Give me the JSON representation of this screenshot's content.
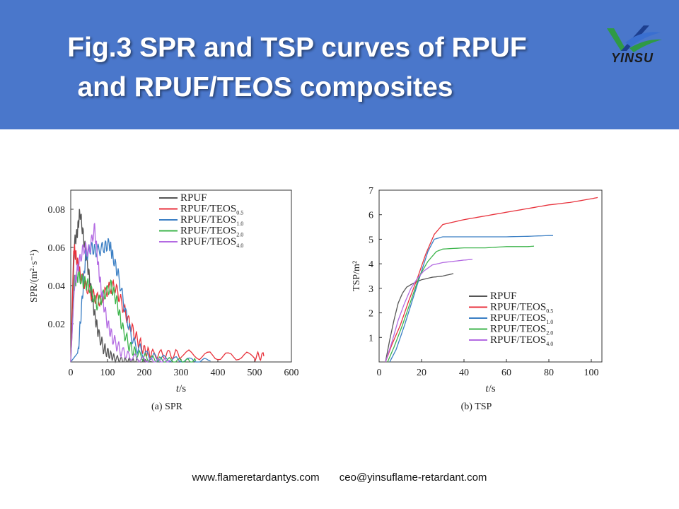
{
  "header": {
    "title_line1": "Fig.3 SPR and TSP curves of RPUF",
    "title_line2": "and RPUF/TEOS composites",
    "logo_text": "YINSU"
  },
  "footer": {
    "website": "www.flameretardantys.com",
    "email": "ceo@yinsuflame-retardant.com"
  },
  "colors": {
    "header_bg": "#4a77cb",
    "RPUF": "#555555",
    "RPUF/TEOS0.5": "#e8323c",
    "RPUF/TEOS1.0": "#3b7fc4",
    "RPUF/TEOS2.0": "#3cb44b",
    "RPUF/TEOS4.0": "#b36ae2"
  },
  "chart_data": [
    {
      "type": "line",
      "caption": "(a) SPR",
      "xlabel_italic": "t",
      "xlabel_unit": "/s",
      "ylabel": "SPR/(m²·s⁻¹)",
      "xlim": [
        0,
        600
      ],
      "ylim": [
        0,
        0.09
      ],
      "xticks": [
        "0",
        "100",
        "200",
        "300",
        "400",
        "500",
        "600"
      ],
      "yticks": [
        "0.02",
        "0.04",
        "0.06",
        "0.08"
      ],
      "legend_position": "top-right",
      "series": [
        {
          "name": "RPUF",
          "subscript": "",
          "x": [
            0,
            10,
            18,
            25,
            35,
            45,
            55,
            65,
            75,
            90,
            105,
            120,
            140,
            160,
            180,
            220
          ],
          "y": [
            0.0,
            0.062,
            0.068,
            0.079,
            0.065,
            0.052,
            0.038,
            0.025,
            0.015,
            0.007,
            0.004,
            0.002,
            0.001,
            0.0005,
            0.0003,
            0.0003
          ]
        },
        {
          "name": "RPUF/TEOS",
          "subscript": "0.5",
          "x": [
            0,
            8,
            15,
            25,
            40,
            60,
            80,
            100,
            120,
            140,
            160,
            180,
            200,
            220,
            260,
            300,
            400,
            500,
            525
          ],
          "y": [
            0.0,
            0.06,
            0.055,
            0.046,
            0.04,
            0.035,
            0.032,
            0.038,
            0.04,
            0.03,
            0.02,
            0.012,
            0.006,
            0.004,
            0.004,
            0.004,
            0.003,
            0.003,
            0.003
          ]
        },
        {
          "name": "RPUF/TEOS",
          "subscript": "1.0",
          "x": [
            0,
            20,
            30,
            40,
            55,
            70,
            90,
            105,
            115,
            130,
            150,
            170,
            200,
            240,
            300,
            380
          ],
          "y": [
            0.0,
            0.005,
            0.03,
            0.055,
            0.06,
            0.058,
            0.06,
            0.062,
            0.055,
            0.045,
            0.025,
            0.01,
            0.004,
            0.002,
            0.001,
            0.0005
          ]
        },
        {
          "name": "RPUF/TEOS",
          "subscript": "2.0",
          "x": [
            0,
            10,
            20,
            35,
            50,
            70,
            90,
            110,
            125,
            140,
            160,
            180,
            210,
            250,
            300,
            340
          ],
          "y": [
            0.0,
            0.042,
            0.045,
            0.042,
            0.04,
            0.03,
            0.035,
            0.04,
            0.032,
            0.018,
            0.008,
            0.004,
            0.002,
            0.001,
            0.0005,
            0.0005
          ]
        },
        {
          "name": "RPUF/TEOS",
          "subscript": "4.0",
          "x": [
            0,
            10,
            20,
            35,
            50,
            65,
            75,
            85,
            100,
            115,
            135,
            160,
            200,
            240,
            270
          ],
          "y": [
            0.0,
            0.04,
            0.05,
            0.06,
            0.058,
            0.07,
            0.05,
            0.035,
            0.02,
            0.012,
            0.006,
            0.003,
            0.001,
            0.0005,
            0.0005
          ]
        }
      ]
    },
    {
      "type": "line",
      "caption": "(b) TSP",
      "xlabel_italic": "t",
      "xlabel_unit": "/s",
      "ylabel": "TSP/m²",
      "xlim": [
        0,
        105
      ],
      "ylim": [
        0,
        7
      ],
      "xticks": [
        "0",
        "20",
        "40",
        "60",
        "80",
        "100"
      ],
      "yticks": [
        "1",
        "2",
        "3",
        "4",
        "5",
        "6",
        "7"
      ],
      "legend_position": "bottom-right",
      "series": [
        {
          "name": "RPUF",
          "subscript": "",
          "x": [
            3,
            5,
            7,
            9,
            11,
            13,
            16,
            20,
            25,
            30,
            35
          ],
          "y": [
            0.0,
            0.9,
            1.7,
            2.4,
            2.8,
            3.05,
            3.2,
            3.35,
            3.45,
            3.5,
            3.6
          ]
        },
        {
          "name": "RPUF/TEOS",
          "subscript": "0.5",
          "x": [
            3,
            6,
            10,
            14,
            18,
            22,
            26,
            30,
            40,
            50,
            60,
            70,
            80,
            90,
            100,
            103
          ],
          "y": [
            0.0,
            0.7,
            1.5,
            2.5,
            3.4,
            4.4,
            5.2,
            5.6,
            5.8,
            5.95,
            6.1,
            6.25,
            6.4,
            6.5,
            6.65,
            6.7
          ]
        },
        {
          "name": "RPUF/TEOS",
          "subscript": "1.0",
          "x": [
            5,
            8,
            12,
            16,
            20,
            23,
            26,
            30,
            40,
            50,
            60,
            70,
            80,
            82
          ],
          "y": [
            0.0,
            0.5,
            1.5,
            2.6,
            3.7,
            4.5,
            5.0,
            5.1,
            5.1,
            5.1,
            5.1,
            5.12,
            5.15,
            5.15
          ]
        },
        {
          "name": "RPUF/TEOS",
          "subscript": "2.0",
          "x": [
            4,
            7,
            11,
            15,
            19,
            23,
            27,
            30,
            40,
            50,
            60,
            70,
            73
          ],
          "y": [
            0.0,
            0.6,
            1.5,
            2.5,
            3.5,
            4.1,
            4.5,
            4.6,
            4.65,
            4.65,
            4.7,
            4.7,
            4.72
          ]
        },
        {
          "name": "RPUF/TEOS",
          "subscript": "4.0",
          "x": [
            3,
            6,
            9,
            12,
            15,
            18,
            21,
            25,
            30,
            35,
            40,
            44
          ],
          "y": [
            0.0,
            0.8,
            1.7,
            2.4,
            3.0,
            3.4,
            3.7,
            3.95,
            4.05,
            4.1,
            4.15,
            4.18
          ]
        }
      ]
    }
  ]
}
